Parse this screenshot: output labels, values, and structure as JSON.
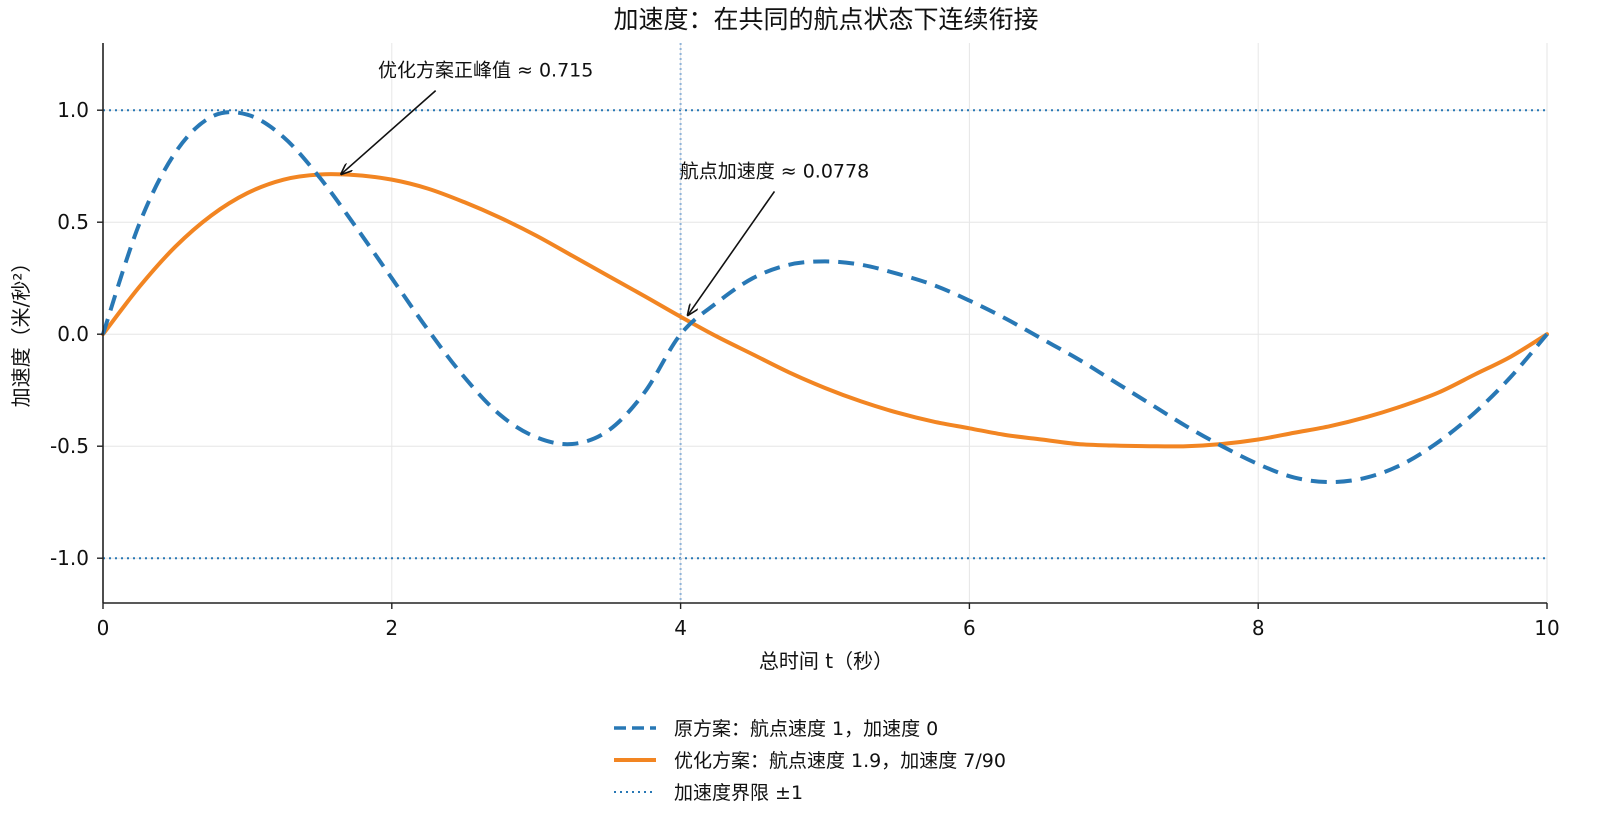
{
  "chart_data": {
    "type": "line",
    "title": "加速度：在共同的航点状态下连续衔接",
    "xlabel": "总时间 t（秒）",
    "ylabel": "加速度（米/秒²）",
    "xlim": [
      0,
      10
    ],
    "ylim": [
      -1.2,
      1.3
    ],
    "xticks": [
      0,
      2,
      4,
      6,
      8,
      10
    ],
    "xtick_labels": [
      "0",
      "2",
      "4",
      "6",
      "8",
      "10"
    ],
    "yticks": [
      -1.0,
      -0.5,
      0.0,
      0.5,
      1.0
    ],
    "ytick_labels": [
      "-1.0",
      "-0.5",
      "0.0",
      "0.5",
      "1.0"
    ],
    "grid": true,
    "legend_position": "bottom-center",
    "waypoint_t": 4,
    "bounds": [
      -1,
      1
    ],
    "colors": {
      "original": "#2878b5",
      "optimized": "#f28522",
      "bounds": "#2878b5",
      "waypoint_line": "#8fb3d9",
      "grid": "#e6e6e6",
      "axes": "#222222"
    },
    "series": [
      {
        "name": "原方案：航点速度 1，加速度 0",
        "style": "dashed",
        "x": [
          0,
          0.25,
          0.5,
          0.75,
          1.0,
          1.25,
          1.5,
          1.75,
          2.0,
          2.25,
          2.5,
          2.75,
          3.0,
          3.25,
          3.5,
          3.75,
          4.0,
          4.25,
          4.5,
          4.75,
          5.0,
          5.25,
          5.5,
          5.75,
          6.0,
          6.25,
          6.5,
          6.75,
          7.0,
          7.25,
          7.5,
          7.75,
          8.0,
          8.25,
          8.5,
          8.75,
          9.0,
          9.25,
          9.5,
          9.75,
          10.0
        ],
        "y": [
          0,
          0.49,
          0.81,
          0.97,
          0.98,
          0.88,
          0.7,
          0.48,
          0.25,
          0.02,
          -0.19,
          -0.36,
          -0.46,
          -0.49,
          -0.43,
          -0.26,
          0.0,
          0.14,
          0.25,
          0.31,
          0.325,
          0.31,
          0.27,
          0.22,
          0.15,
          0.07,
          -0.02,
          -0.11,
          -0.21,
          -0.31,
          -0.41,
          -0.5,
          -0.58,
          -0.64,
          -0.66,
          -0.64,
          -0.58,
          -0.48,
          -0.35,
          -0.19,
          0.0
        ]
      },
      {
        "name": "优化方案：航点速度 1.9，加速度 7/90",
        "style": "solid",
        "x": [
          0,
          0.25,
          0.5,
          0.75,
          1.0,
          1.25,
          1.5,
          1.75,
          2.0,
          2.25,
          2.5,
          2.75,
          3.0,
          3.25,
          3.5,
          3.75,
          4.0,
          4.25,
          4.5,
          4.75,
          5.0,
          5.25,
          5.5,
          5.75,
          6.0,
          6.25,
          6.5,
          6.75,
          7.0,
          7.25,
          7.5,
          7.75,
          8.0,
          8.25,
          8.5,
          8.75,
          9.0,
          9.25,
          9.5,
          9.75,
          10.0
        ],
        "y": [
          0,
          0.21,
          0.39,
          0.53,
          0.63,
          0.69,
          0.713,
          0.71,
          0.69,
          0.65,
          0.59,
          0.52,
          0.44,
          0.35,
          0.26,
          0.17,
          0.078,
          -0.01,
          -0.09,
          -0.17,
          -0.24,
          -0.3,
          -0.35,
          -0.39,
          -0.42,
          -0.45,
          -0.47,
          -0.49,
          -0.497,
          -0.5,
          -0.5,
          -0.49,
          -0.47,
          -0.44,
          -0.41,
          -0.37,
          -0.32,
          -0.26,
          -0.18,
          -0.1,
          0.0
        ]
      },
      {
        "name": "加速度界限 ±1",
        "style": "dotted"
      }
    ],
    "annotations": [
      {
        "text": "优化方案正峰值 ≈ 0.715",
        "point": [
          1.65,
          0.715
        ],
        "text_pos": [
          2.65,
          1.15
        ]
      },
      {
        "text": "航点加速度 ≈ 0.0778",
        "point": [
          4.05,
          0.085
        ],
        "text_pos": [
          4.65,
          0.7
        ]
      }
    ]
  }
}
